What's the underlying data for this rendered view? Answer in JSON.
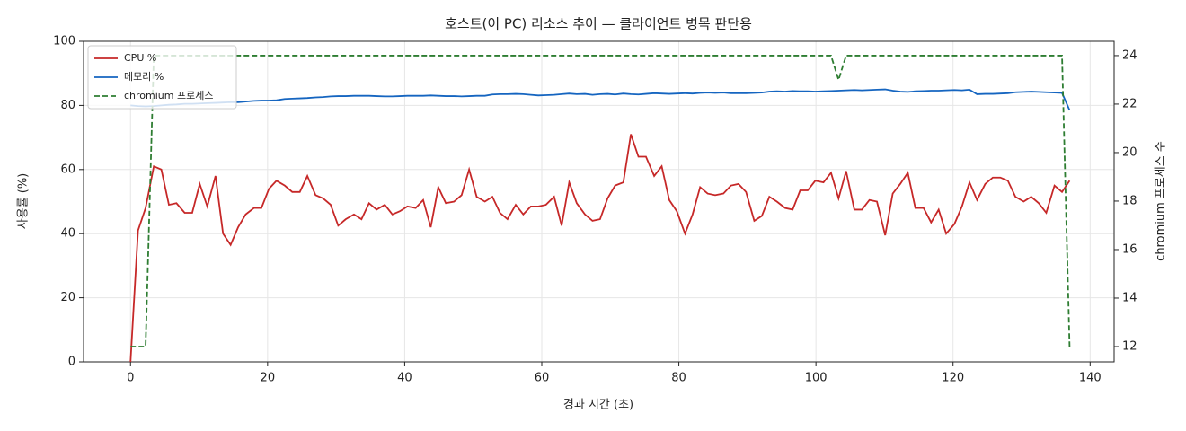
{
  "chart_data": {
    "type": "line",
    "title": "호스트(이 PC) 리소스 추이 — 클라이언트 병목 판단용",
    "x_label": "경과 시간 (초)",
    "y_label": "사용률 (%)",
    "y2_label": "chromium 프로세스 수",
    "x": [
      0,
      1.1,
      2.2,
      3.4,
      4.5,
      5.6,
      6.7,
      7.9,
      9.0,
      10.1,
      11.2,
      12.4,
      13.5,
      14.6,
      15.7,
      16.8,
      18.0,
      19.1,
      20.2,
      21.3,
      22.5,
      23.6,
      24.7,
      25.8,
      27.0,
      28.1,
      29.2,
      30.3,
      31.4,
      32.6,
      33.7,
      34.8,
      35.9,
      37.1,
      38.2,
      39.3,
      40.4,
      41.6,
      42.7,
      43.8,
      44.9,
      46.0,
      47.2,
      48.3,
      49.4,
      50.5,
      51.7,
      52.8,
      53.9,
      55.0,
      56.2,
      57.3,
      58.4,
      59.5,
      60.6,
      61.8,
      62.9,
      64.0,
      65.1,
      66.3,
      67.4,
      68.5,
      69.6,
      70.7,
      71.9,
      73.0,
      74.1,
      75.2,
      76.4,
      77.5,
      78.6,
      79.7,
      80.9,
      82.0,
      83.1,
      84.2,
      85.3,
      86.5,
      87.6,
      88.7,
      89.8,
      91.0,
      92.1,
      93.2,
      94.3,
      95.5,
      96.6,
      97.7,
      98.8,
      99.9,
      101.1,
      102.2,
      103.3,
      104.4,
      105.6,
      106.7,
      107.8,
      108.9,
      110.1,
      111.2,
      112.3,
      113.4,
      114.5,
      115.7,
      116.8,
      117.9,
      119.0,
      120.2,
      121.3,
      122.4,
      123.5,
      124.7,
      125.8,
      126.9,
      128.0,
      129.1,
      130.3,
      131.4,
      132.5,
      133.6,
      134.8,
      135.9,
      137.0
    ],
    "series": [
      {
        "name": "CPU %",
        "color": "#c62828",
        "linestyle": "solid",
        "values": [
          0,
          41,
          48,
          61,
          60,
          49,
          49.5,
          46.5,
          46.5,
          55.5,
          48.5,
          58,
          40,
          36.5,
          42,
          46,
          48,
          48,
          54,
          56.5,
          55,
          53,
          53,
          58,
          52,
          51,
          49,
          42.5,
          44.5,
          46,
          44.5,
          49.5,
          47.5,
          49,
          46,
          47,
          48.5,
          48,
          50.5,
          42,
          54.5,
          49.5,
          50,
          52,
          60,
          51.5,
          50,
          51.5,
          46.5,
          44.5,
          49,
          46,
          48.5,
          48.5,
          49,
          51.5,
          42.5,
          56,
          49.5,
          46,
          44,
          44.5,
          51,
          55,
          56,
          71,
          64,
          64,
          58,
          61,
          50.5,
          47,
          40,
          46,
          54.5,
          52.5,
          52,
          52.5,
          55,
          55.5,
          53,
          44,
          45.5,
          51.5,
          50,
          48,
          47.5,
          53.5,
          53.5,
          56.5,
          56,
          59,
          51,
          59.5,
          47.5,
          47.5,
          50.5,
          50,
          39.5,
          52.5,
          55.5,
          59,
          48,
          48,
          43.5,
          47.5,
          40,
          43,
          48.5,
          56,
          50.5,
          55.5,
          57.5,
          57.5,
          56.5,
          51.5,
          50,
          51.5,
          49.5,
          46.5,
          55,
          53,
          56.5
        ]
      },
      {
        "name": "메모리 %",
        "color": "#1565c0",
        "linestyle": "solid",
        "values": [
          80,
          79.8,
          79.7,
          79.8,
          80,
          80.2,
          80.3,
          80.5,
          80.5,
          80.6,
          80.7,
          80.8,
          80.9,
          81,
          81,
          81.2,
          81.4,
          81.5,
          81.5,
          81.6,
          82,
          82.1,
          82.2,
          82.3,
          82.5,
          82.6,
          82.8,
          82.9,
          82.9,
          83,
          83,
          83,
          82.9,
          82.8,
          82.8,
          82.9,
          83,
          83,
          83,
          83.1,
          83,
          82.9,
          82.9,
          82.8,
          82.9,
          83,
          83,
          83.4,
          83.5,
          83.5,
          83.6,
          83.5,
          83.3,
          83.1,
          83.2,
          83.3,
          83.5,
          83.7,
          83.5,
          83.6,
          83.3,
          83.5,
          83.6,
          83.4,
          83.7,
          83.5,
          83.4,
          83.6,
          83.8,
          83.7,
          83.6,
          83.7,
          83.8,
          83.7,
          83.9,
          84,
          83.9,
          84,
          83.8,
          83.8,
          83.8,
          83.9,
          84,
          84.3,
          84.4,
          84.3,
          84.5,
          84.4,
          84.4,
          84.3,
          84.4,
          84.5,
          84.6,
          84.7,
          84.8,
          84.7,
          84.8,
          84.9,
          85,
          84.6,
          84.3,
          84.2,
          84.4,
          84.5,
          84.6,
          84.6,
          84.7,
          84.8,
          84.7,
          84.9,
          83.5,
          83.6,
          83.6,
          83.7,
          83.8,
          84.1,
          84.2,
          84.3,
          84.2,
          84.1,
          84,
          83.9,
          78.5
        ]
      },
      {
        "name": "chromium 프로세스",
        "color": "#2e7d32",
        "linestyle": "dashed",
        "axis": "y2",
        "values": [
          12,
          12,
          12,
          24,
          24,
          24,
          24,
          24,
          24,
          24,
          24,
          24,
          24,
          24,
          24,
          24,
          24,
          24,
          24,
          24,
          24,
          24,
          24,
          24,
          24,
          24,
          24,
          24,
          24,
          24,
          24,
          24,
          24,
          24,
          24,
          24,
          24,
          24,
          24,
          24,
          24,
          24,
          24,
          24,
          24,
          24,
          24,
          24,
          24,
          24,
          24,
          24,
          24,
          24,
          24,
          24,
          24,
          24,
          24,
          24,
          24,
          24,
          24,
          24,
          24,
          24,
          24,
          24,
          24,
          24,
          24,
          24,
          24,
          24,
          24,
          24,
          24,
          24,
          24,
          24,
          24,
          24,
          24,
          24,
          24,
          24,
          24,
          24,
          24,
          24,
          24,
          24,
          23,
          24,
          24,
          24,
          24,
          24,
          24,
          24,
          24,
          24,
          24,
          24,
          24,
          24,
          24,
          24,
          24,
          24,
          24,
          24,
          24,
          24,
          24,
          24,
          24,
          24,
          24,
          24,
          24,
          24,
          12
        ]
      }
    ],
    "xlim": [
      -6.85,
      143.5
    ],
    "xticks": [
      0,
      20,
      40,
      60,
      80,
      100,
      120,
      140
    ],
    "ylim": [
      0,
      100
    ],
    "yticks": [
      0,
      20,
      40,
      60,
      80,
      100
    ],
    "y2lim": [
      11.37,
      24.59
    ],
    "y2ticks": [
      12,
      14,
      16,
      18,
      20,
      22,
      24
    ],
    "grid": true,
    "legend": "upper-left"
  }
}
